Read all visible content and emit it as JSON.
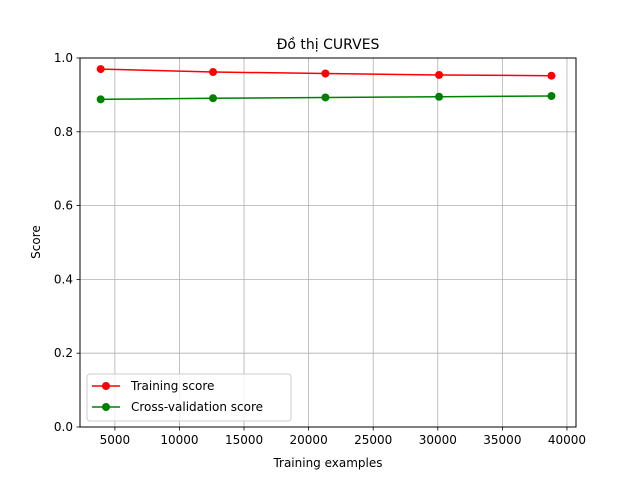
{
  "chart_data": {
    "type": "line",
    "title": "Đồ thị CURVES",
    "xlabel": "Training examples",
    "ylabel": "Score",
    "xlim": [
      2300,
      40700
    ],
    "ylim": [
      0.0,
      1.0
    ],
    "xticks": [
      5000,
      10000,
      15000,
      20000,
      25000,
      30000,
      35000,
      40000
    ],
    "xtick_labels": [
      "5000",
      "10000",
      "15000",
      "20000",
      "25000",
      "30000",
      "35000",
      "40000"
    ],
    "yticks": [
      0.0,
      0.2,
      0.4,
      0.6,
      0.8,
      1.0
    ],
    "ytick_labels": [
      "0.0",
      "0.2",
      "0.4",
      "0.6",
      "0.8",
      "1.0"
    ],
    "grid": true,
    "legend_position": "lower-left",
    "x": [
      3900,
      12600,
      21300,
      30100,
      38800
    ],
    "series": [
      {
        "name": "Training score",
        "color": "#ff0000",
        "values": [
          0.97,
          0.962,
          0.958,
          0.954,
          0.952
        ]
      },
      {
        "name": "Cross-validation score",
        "color": "#008000",
        "values": [
          0.888,
          0.891,
          0.893,
          0.895,
          0.897
        ]
      }
    ]
  }
}
